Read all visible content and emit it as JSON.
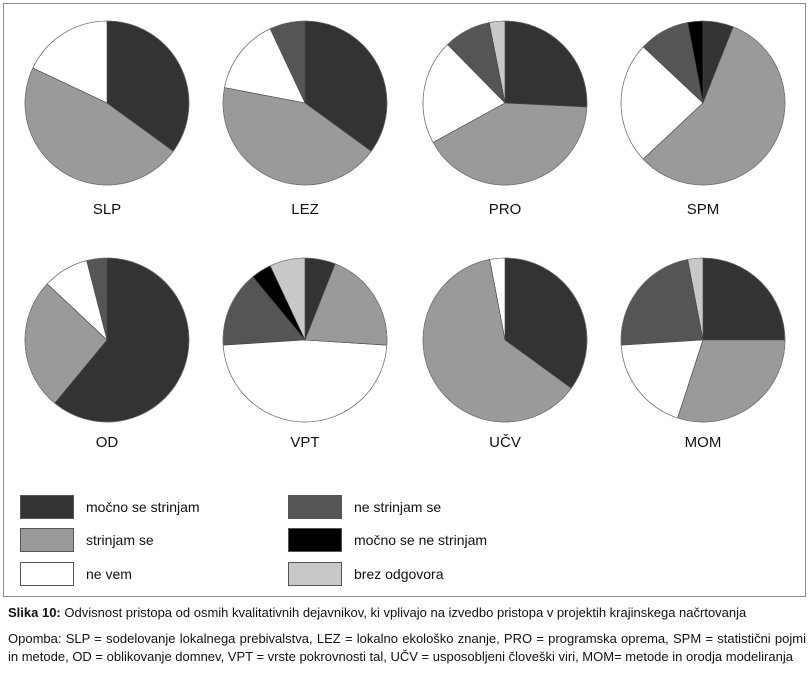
{
  "chart_data": {
    "type": "pie",
    "categories": [
      "močno se strinjam",
      "strinjam se",
      "ne vem",
      "ne strinjam se",
      "močno se ne strinjam",
      "brez odgovora"
    ],
    "colors": [
      "#333333",
      "#9a9a9a",
      "#ffffff",
      "#555555",
      "#000000",
      "#c8c8c8"
    ],
    "charts": [
      {
        "label": "SLP",
        "values": [
          35,
          47,
          18,
          0,
          0,
          0
        ]
      },
      {
        "label": "LEZ",
        "values": [
          35,
          43,
          15,
          7,
          0,
          0
        ]
      },
      {
        "label": "PRO",
        "values": [
          25,
          40,
          20,
          9,
          0,
          3
        ]
      },
      {
        "label": "SPM",
        "values": [
          6,
          57,
          24,
          10,
          3,
          0
        ]
      },
      {
        "label": "OD",
        "values": [
          61,
          26,
          9,
          4,
          0,
          0
        ]
      },
      {
        "label": "VPT",
        "values": [
          6,
          20,
          48,
          15,
          4,
          7
        ]
      },
      {
        "label": "UČV",
        "values": [
          35,
          62,
          3,
          0,
          0,
          0
        ]
      },
      {
        "label": "MOM",
        "values": [
          25,
          30,
          19,
          23,
          0,
          3
        ]
      }
    ]
  },
  "legend": [
    "močno se strinjam",
    "strinjam se",
    "ne vem",
    "ne strinjam se",
    "močno se ne strinjam",
    "brez odgovora"
  ],
  "caption": {
    "prefix": "Slika 10:",
    "text": " Odvisnost pristopa od osmih kvalitativnih dejavnikov, ki vplivajo na izvedbo pristopa v projektih krajinskega načrtovanja"
  },
  "note": "Opomba: SLP = sodelovanje lokalnega prebivalstva, LEZ = lokalno ekološko znanje, PRO = programska oprema, SPM = statistični pojmi in metode, OD = oblikovanje domnev, VPT = vrste pokrovnosti tal, UČV = usposobljeni človeški viri, MOM= metode in orodja modeliranja"
}
